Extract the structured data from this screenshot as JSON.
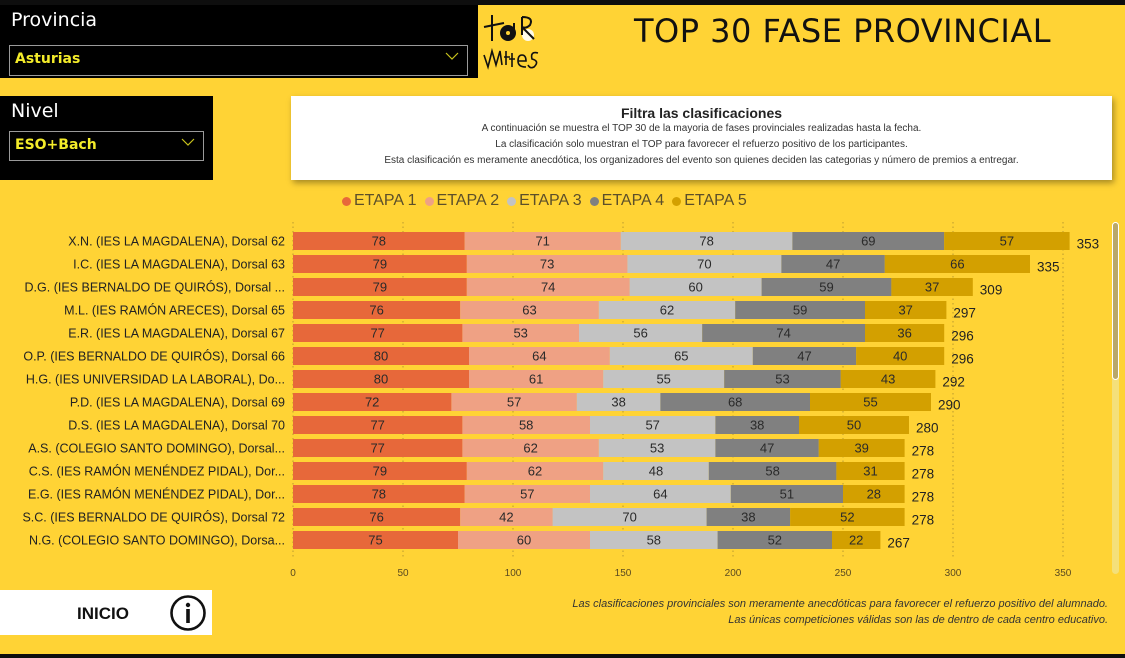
{
  "header": {
    "title": "TOP 30 FASE PROVINCIAL",
    "logo_text_top": "TOUR",
    "logo_text_bottom": "M4teS"
  },
  "filters": {
    "provincia": {
      "label": "Provincia",
      "value": "Asturias"
    },
    "nivel": {
      "label": "Nivel",
      "value": "ESO+Bach"
    }
  },
  "info": {
    "heading": "Filtra las clasificaciones",
    "lines": [
      "A continuación se muestra el TOP 30 de la mayoria de fases provinciales realizadas hasta la fecha.",
      "La clasificación solo muestran el TOP para favorecer el refuerzo positivo de los participantes.",
      "Esta clasificación es meramente anecdótica, los organizadores del evento son quienes deciden las categorias y número de premios a entregar."
    ]
  },
  "nav": {
    "home_label": "INICIO",
    "info_icon": "info-icon"
  },
  "footnote": {
    "line1": "Las clasificaciones provinciales son meramente anecdóticas para favorecer el refuerzo positivo del alumnado.",
    "line2": "Las únicas competiciones válidas son las de dentro de cada centro educativo."
  },
  "colors": {
    "background": "#ffd335",
    "etapa1": "#e7683a",
    "etapa2": "#efa184",
    "etapa3": "#c3c3c3",
    "etapa4": "#808080",
    "etapa5": "#d3a000"
  },
  "chart_data": {
    "type": "bar",
    "orientation": "horizontal",
    "stacked": true,
    "title": "",
    "xlabel": "",
    "ylabel": "",
    "xlim": [
      0,
      350
    ],
    "xticks": [
      0,
      50,
      100,
      150,
      200,
      250,
      300,
      350
    ],
    "grid": true,
    "legend_position": "top",
    "categories": [
      "X.N. (IES LA MAGDALENA), Dorsal 62",
      "I.C. (IES LA MAGDALENA), Dorsal 63",
      "D.G. (IES BERNALDO DE QUIRÓS), Dorsal ...",
      "M.L. (IES RAMÓN ARECES), Dorsal 65",
      "E.R. (IES LA MAGDALENA), Dorsal 67",
      "O.P. (IES BERNALDO DE QUIRÓS), Dorsal 66",
      "H.G. (IES UNIVERSIDAD LA LABORAL), Do...",
      "P.D. (IES LA MAGDALENA), Dorsal 69",
      "D.S. (IES LA MAGDALENA), Dorsal 70",
      "A.S. (COLEGIO SANTO DOMINGO), Dorsal...",
      "C.S. (IES RAMÓN MENÉNDEZ PIDAL), Dor...",
      "E.G. (IES RAMÓN MENÉNDEZ PIDAL), Dor...",
      "S.C. (IES BERNALDO DE QUIRÓS), Dorsal 72",
      "N.G. (COLEGIO SANTO DOMINGO), Dorsa..."
    ],
    "series": [
      {
        "name": "ETAPA 1",
        "values": [
          78,
          79,
          79,
          76,
          77,
          80,
          80,
          72,
          77,
          77,
          79,
          78,
          76,
          75
        ]
      },
      {
        "name": "ETAPA 2",
        "values": [
          71,
          73,
          74,
          63,
          53,
          64,
          61,
          57,
          58,
          62,
          62,
          57,
          42,
          60
        ]
      },
      {
        "name": "ETAPA 3",
        "values": [
          78,
          70,
          60,
          62,
          56,
          65,
          55,
          38,
          57,
          53,
          48,
          64,
          70,
          58
        ]
      },
      {
        "name": "ETAPA 4",
        "values": [
          69,
          47,
          59,
          59,
          74,
          47,
          53,
          68,
          38,
          47,
          58,
          51,
          38,
          52
        ]
      },
      {
        "name": "ETAPA 5",
        "values": [
          57,
          66,
          37,
          37,
          36,
          40,
          43,
          55,
          50,
          39,
          31,
          28,
          52,
          22
        ]
      }
    ],
    "totals": [
      353,
      335,
      309,
      297,
      296,
      296,
      292,
      290,
      280,
      278,
      278,
      278,
      278,
      267
    ]
  }
}
